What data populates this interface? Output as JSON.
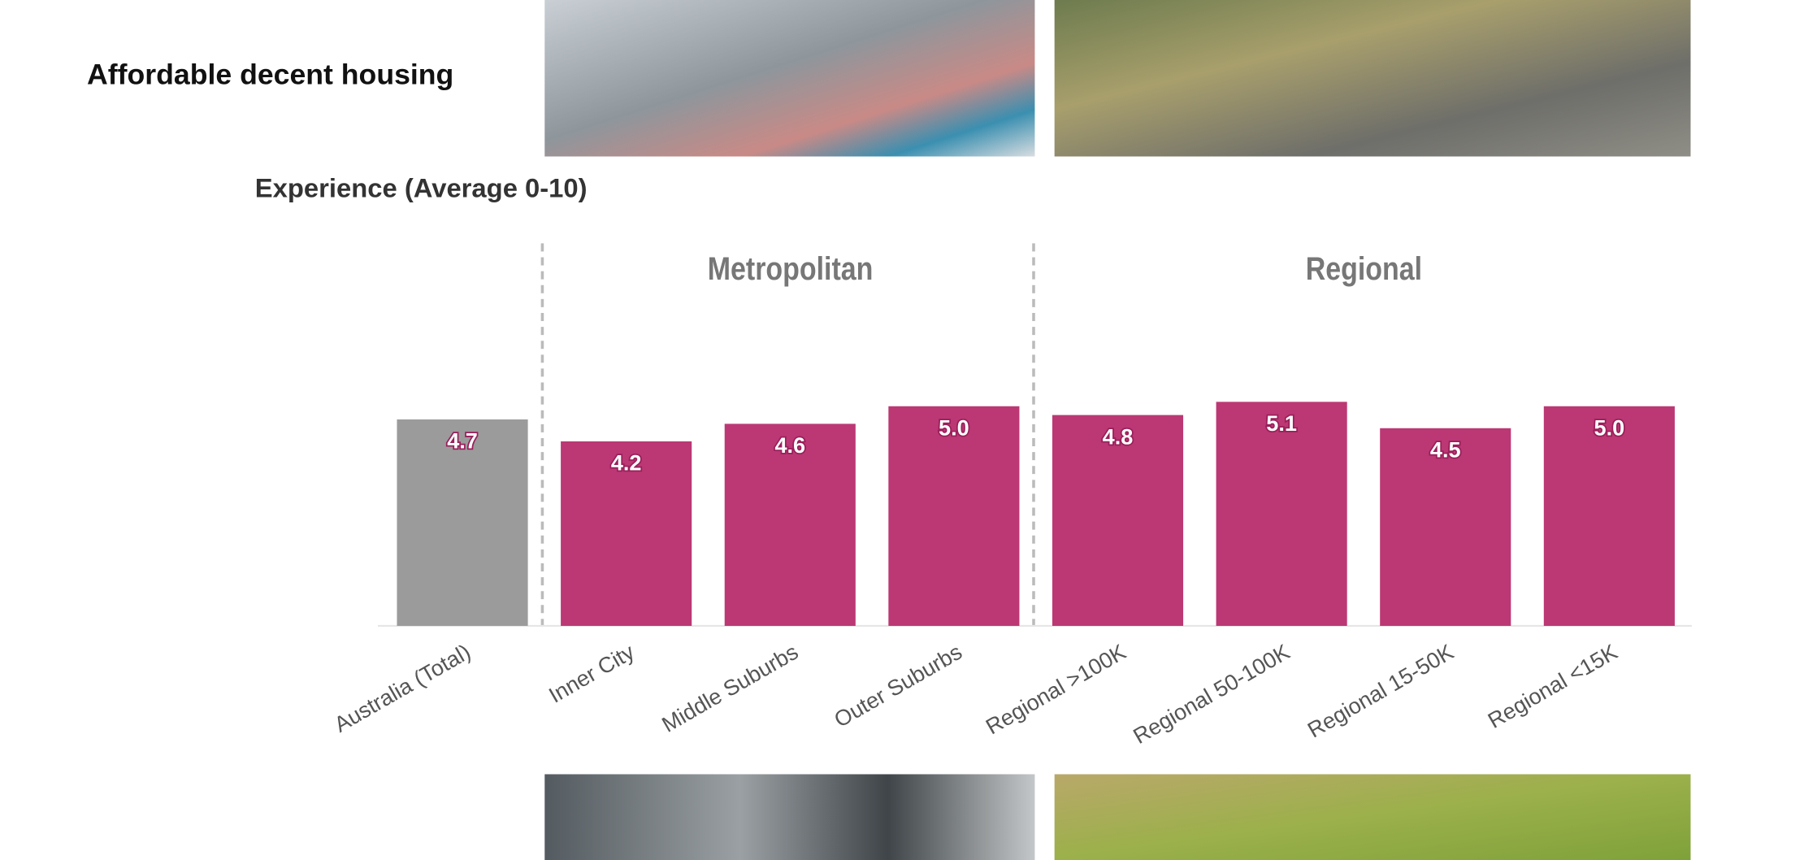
{
  "heading": "Affordable decent housing",
  "chart_data": {
    "type": "bar",
    "title": "Experience (Average 0-10)",
    "group_labels": [
      "Metropolitan",
      "Regional"
    ],
    "categories": [
      "Australia (Total)",
      "Inner City",
      "Middle Suburbs",
      "Outer Suburbs",
      "Regional >100K",
      "Regional 50-100K",
      "Regional 15-50K",
      "Regional <15K"
    ],
    "values": [
      4.7,
      4.2,
      4.6,
      5.0,
      4.8,
      5.1,
      4.5,
      5.0
    ],
    "value_labels": [
      "4.7",
      "4.2",
      "4.6",
      "5.0",
      "4.8",
      "5.1",
      "4.5",
      "5.0"
    ],
    "colors": [
      "#9b9b9b",
      "#bb3874",
      "#bb3874",
      "#bb3874",
      "#bb3874",
      "#bb3874",
      "#bb3874",
      "#bb3874"
    ],
    "ylim": [
      0,
      10
    ]
  }
}
